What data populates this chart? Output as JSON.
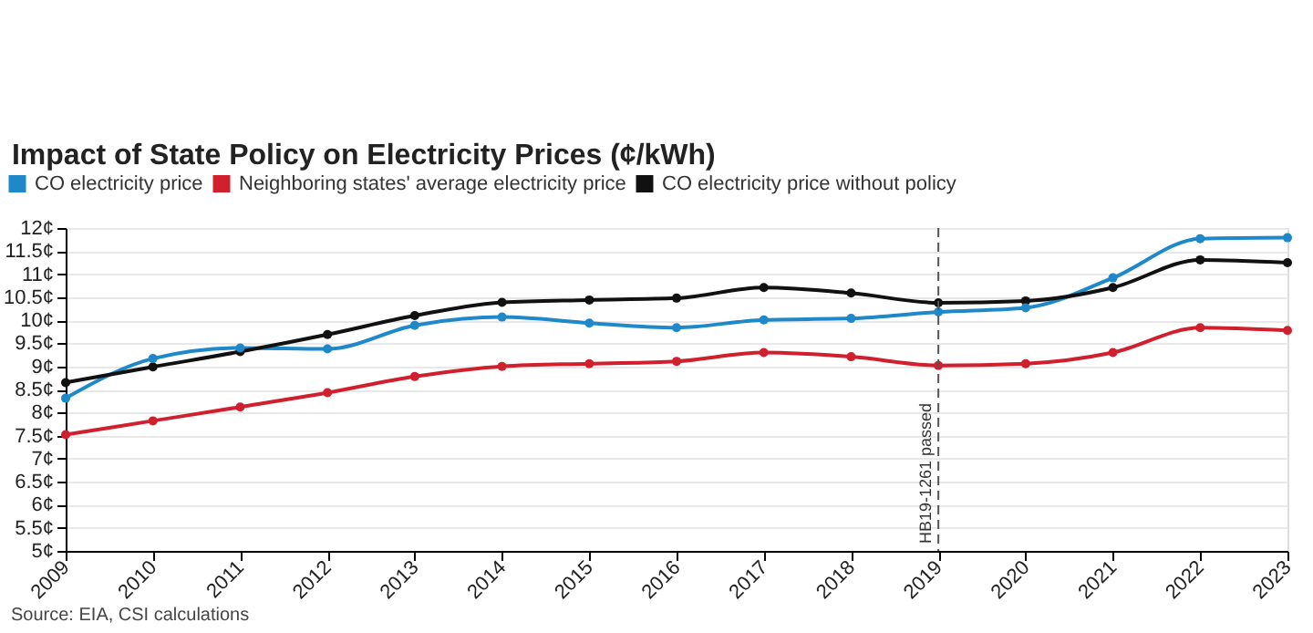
{
  "chart_data": {
    "type": "line",
    "title": "Impact of State Policy on Electricity Prices (¢/kWh)",
    "x": [
      2009,
      2010,
      2011,
      2012,
      2013,
      2014,
      2015,
      2016,
      2017,
      2018,
      2019,
      2020,
      2021,
      2022,
      2023
    ],
    "series": [
      {
        "name": "CO electricity price",
        "color": "#1f88c9",
        "values": [
          8.31,
          9.17,
          9.4,
          9.38,
          9.89,
          10.07,
          9.94,
          9.84,
          10.01,
          10.04,
          10.18,
          10.27,
          10.92,
          11.77,
          11.79
        ]
      },
      {
        "name": "Neighboring states' average electricity price",
        "color": "#d0202e",
        "values": [
          7.52,
          7.82,
          8.12,
          8.43,
          8.78,
          9.0,
          9.06,
          9.11,
          9.3,
          9.21,
          9.02,
          9.06,
          9.3,
          9.84,
          9.78
        ]
      },
      {
        "name": "CO electricity price without policy",
        "color": "#111111",
        "values": [
          8.65,
          8.99,
          9.32,
          9.69,
          10.1,
          10.39,
          10.44,
          10.48,
          10.71,
          10.59,
          10.38,
          10.42,
          10.71,
          11.31,
          11.25
        ]
      }
    ],
    "xlim": [
      2009,
      2023
    ],
    "xticks": [
      2009,
      2010,
      2011,
      2012,
      2013,
      2014,
      2015,
      2016,
      2017,
      2018,
      2019,
      2020,
      2021,
      2022,
      2023
    ],
    "ylim": [
      5,
      12
    ],
    "yticks": [
      {
        "value": 5,
        "label": "5¢"
      },
      {
        "value": 5.5,
        "label": "5.5¢"
      },
      {
        "value": 6,
        "label": "6¢"
      },
      {
        "value": 6.5,
        "label": "6.5¢"
      },
      {
        "value": 7,
        "label": "7¢"
      },
      {
        "value": 7.5,
        "label": "7.5¢"
      },
      {
        "value": 8,
        "label": "8¢"
      },
      {
        "value": 8.5,
        "label": "8.5¢"
      },
      {
        "value": 9,
        "label": "9¢"
      },
      {
        "value": 9.5,
        "label": "9.5¢"
      },
      {
        "value": 10,
        "label": "10¢"
      },
      {
        "value": 10.5,
        "label": "10.5¢"
      },
      {
        "value": 11,
        "label": "11¢"
      },
      {
        "value": 11.5,
        "label": "11.5¢"
      },
      {
        "value": 12,
        "label": "12¢"
      }
    ],
    "ref_lines": [
      {
        "axis": "x",
        "value": 2019,
        "label": "HB19-1261 passed",
        "color": "#555555",
        "line_style": "dashed"
      }
    ],
    "annotations": [
      "Source: EIA, CSI calculations"
    ],
    "grid": "y",
    "legend": "top left",
    "marker": "circle",
    "line_style": "solid"
  }
}
